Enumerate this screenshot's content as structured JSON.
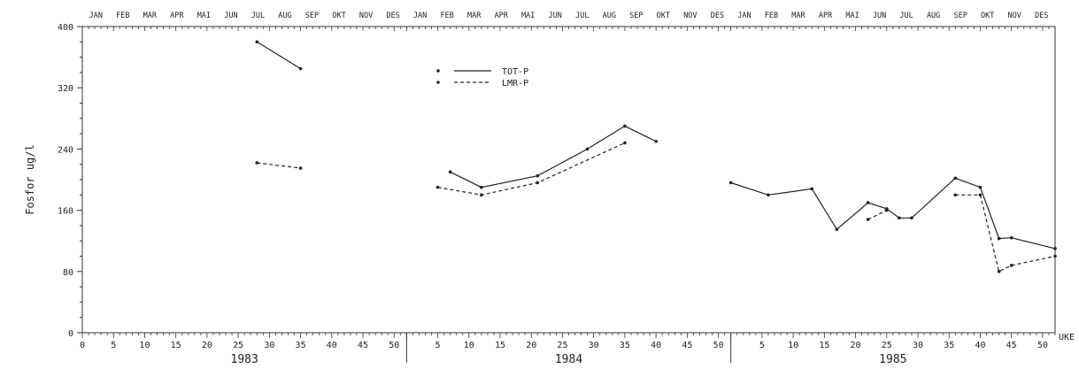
{
  "chart_data": {
    "type": "line",
    "ylabel": "Fosfor ug/l",
    "xlabel": "UKE",
    "ylim": [
      0,
      400
    ],
    "yticks": [
      0,
      80,
      160,
      240,
      320,
      400
    ],
    "months": [
      "JAN",
      "FEB",
      "MAR",
      "APR",
      "MAI",
      "JUN",
      "JUL",
      "AUG",
      "SEP",
      "OKT",
      "NOV",
      "DES"
    ],
    "week_ticks": [
      0,
      5,
      10,
      15,
      20,
      25,
      30,
      35,
      40,
      45,
      50
    ],
    "years": [
      "1983",
      "1984",
      "1985"
    ],
    "legend_position": "top-center",
    "series": [
      {
        "name": "TOT-P",
        "style": "solid",
        "segments": [
          [
            [
              1983,
              28,
              380
            ],
            [
              1983,
              35,
              345
            ]
          ],
          [
            [
              1984,
              7,
              210
            ],
            [
              1984,
              12,
              190
            ],
            [
              1984,
              21,
              205
            ],
            [
              1984,
              29,
              240
            ],
            [
              1984,
              35,
              270
            ],
            [
              1984,
              40,
              250
            ]
          ],
          [
            [
              1985,
              0,
              196
            ],
            [
              1985,
              6,
              180
            ],
            [
              1985,
              13,
              188
            ],
            [
              1985,
              17,
              135
            ],
            [
              1985,
              22,
              170
            ],
            [
              1985,
              25,
              162
            ],
            [
              1985,
              27,
              150
            ],
            [
              1985,
              29,
              150
            ],
            [
              1985,
              36,
              202
            ],
            [
              1985,
              40,
              190
            ],
            [
              1985,
              43,
              123
            ],
            [
              1985,
              45,
              124
            ],
            [
              1985,
              52,
              110
            ]
          ]
        ]
      },
      {
        "name": "LMR-P",
        "style": "dashed",
        "segments": [
          [
            [
              1983,
              28,
              222
            ],
            [
              1983,
              35,
              215
            ]
          ],
          [
            [
              1984,
              5,
              190
            ],
            [
              1984,
              12,
              180
            ],
            [
              1984,
              21,
              196
            ],
            [
              1984,
              35,
              248
            ]
          ],
          [
            [
              1985,
              22,
              148
            ],
            [
              1985,
              25,
              160
            ]
          ],
          [
            [
              1985,
              36,
              180
            ],
            [
              1985,
              40,
              180
            ],
            [
              1985,
              43,
              80
            ],
            [
              1985,
              45,
              88
            ],
            [
              1985,
              52,
              100
            ]
          ]
        ]
      }
    ]
  }
}
